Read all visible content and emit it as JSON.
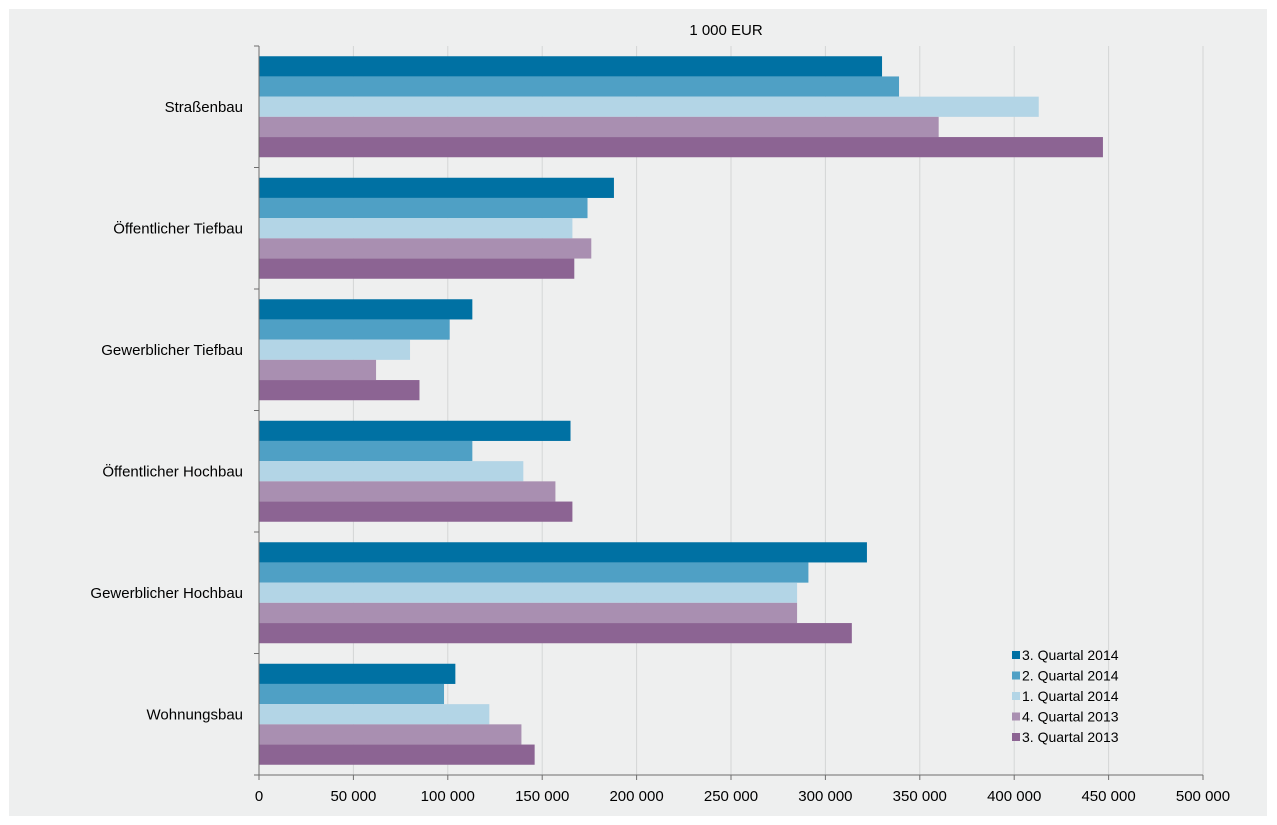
{
  "chart_data": {
    "type": "bar",
    "orientation": "horizontal",
    "title": "1 000 EUR",
    "categories": [
      "Straßenbau",
      "Öffentlicher Tiefbau",
      "Gewerblicher Tiefbau",
      "Öffentlicher Hochbau",
      "Gewerblicher Hochbau",
      "Wohnungsbau"
    ],
    "series": [
      {
        "name": "3. Quartal 2014",
        "color": "#0071a3",
        "values": [
          330000,
          188000,
          113000,
          165000,
          322000,
          104000
        ]
      },
      {
        "name": "2. Quartal 2014",
        "color": "#4fa0c5",
        "values": [
          339000,
          174000,
          101000,
          113000,
          291000,
          98000
        ]
      },
      {
        "name": "1. Quartal 2014",
        "color": "#b3d5e6",
        "values": [
          413000,
          166000,
          80000,
          140000,
          285000,
          122000
        ]
      },
      {
        "name": "4. Quartal 2013",
        "color": "#a98fb1",
        "values": [
          360000,
          176000,
          62000,
          157000,
          285000,
          139000
        ]
      },
      {
        "name": "3. Quartal 2013",
        "color": "#8c6493",
        "values": [
          447000,
          167000,
          85000,
          166000,
          314000,
          146000
        ]
      }
    ],
    "xlim": [
      0,
      500000
    ],
    "xticks": [
      0,
      50000,
      100000,
      150000,
      200000,
      250000,
      300000,
      350000,
      400000,
      450000,
      500000
    ],
    "xtick_labels": [
      "0",
      "50 000",
      "100 000",
      "150 000",
      "200 000",
      "250 000",
      "300 000",
      "350 000",
      "400 000",
      "450 000",
      "500 000"
    ],
    "grid": "vertical",
    "legend_position": "bottom-right"
  }
}
